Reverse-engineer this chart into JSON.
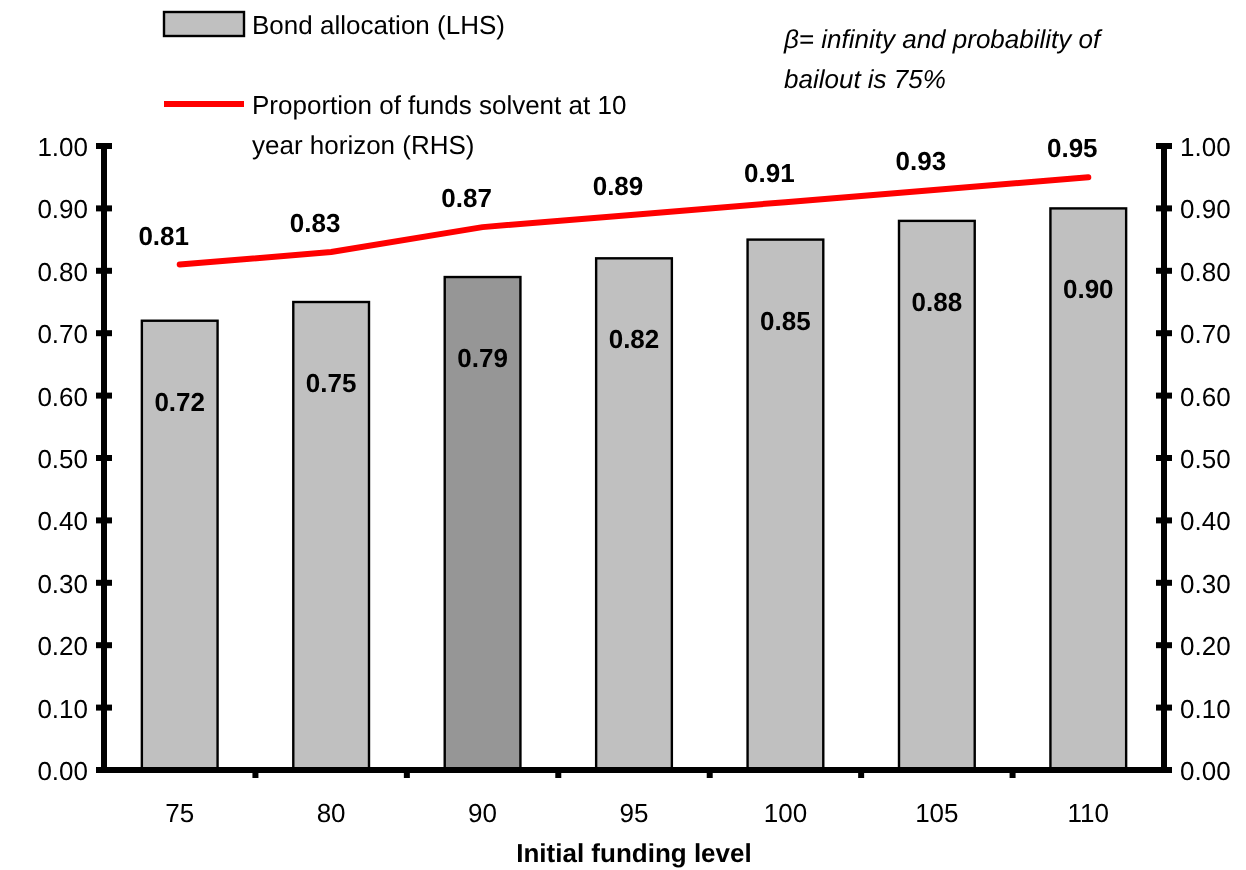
{
  "chart_data": {
    "type": "bar",
    "xlabel": "Initial funding level",
    "categories": [
      "75",
      "80",
      "90",
      "95",
      "100",
      "105",
      "110"
    ],
    "series": [
      {
        "name": "Bond allocation (LHS)",
        "colors": [
          "#c0c0c0",
          "#c0c0c0",
          "#969696",
          "#c0c0c0",
          "#c0c0c0",
          "#c0c0c0",
          "#c0c0c0"
        ],
        "color": "#c0c0c0",
        "values": [
          0.72,
          0.75,
          0.79,
          0.82,
          0.85,
          0.88,
          0.9
        ],
        "value_labels": [
          "0.72",
          "0.75",
          "0.79",
          "0.82",
          "0.85",
          "0.88",
          "0.90"
        ]
      },
      {
        "name": "Proportion of funds solvent at 10 year horizon (RHS)",
        "type": "line",
        "axis": "y2",
        "color": "#ff0000",
        "values": [
          0.81,
          0.83,
          0.87,
          0.89,
          0.91,
          0.93,
          0.95
        ],
        "value_labels": [
          "0.81",
          "0.83",
          "0.87",
          "0.89",
          "0.91",
          "0.93",
          "0.95"
        ]
      }
    ],
    "ylim": [
      0,
      1
    ],
    "yticks": [
      {
        "value": 0,
        "label": "0.00"
      },
      {
        "value": 0.1,
        "label": "0.10"
      },
      {
        "value": 0.2,
        "label": "0.20"
      },
      {
        "value": 0.3,
        "label": "0.30"
      },
      {
        "value": 0.4,
        "label": "0.40"
      },
      {
        "value": 0.5,
        "label": "0.50"
      },
      {
        "value": 0.6,
        "label": "0.60"
      },
      {
        "value": 0.7,
        "label": "0.70"
      },
      {
        "value": 0.8,
        "label": "0.80"
      },
      {
        "value": 0.9,
        "label": "0.90"
      },
      {
        "value": 1,
        "label": "1.00"
      }
    ],
    "y2lim": [
      0,
      1
    ],
    "y2ticks": [
      {
        "value": 0,
        "label": "0.00"
      },
      {
        "value": 0.1,
        "label": "0.10"
      },
      {
        "value": 0.2,
        "label": "0.20"
      },
      {
        "value": 0.3,
        "label": "0.30"
      },
      {
        "value": 0.4,
        "label": "0.40"
      },
      {
        "value": 0.5,
        "label": "0.50"
      },
      {
        "value": 0.6,
        "label": "0.60"
      },
      {
        "value": 0.7,
        "label": "0.70"
      },
      {
        "value": 0.8,
        "label": "0.80"
      },
      {
        "value": 0.9,
        "label": "0.90"
      },
      {
        "value": 1,
        "label": "1.00"
      }
    ],
    "grid": false,
    "legend": "top left",
    "marker": "none",
    "line_style": "solid",
    "annotations": [
      "β= infinity and probability of bailout is 75%"
    ]
  }
}
